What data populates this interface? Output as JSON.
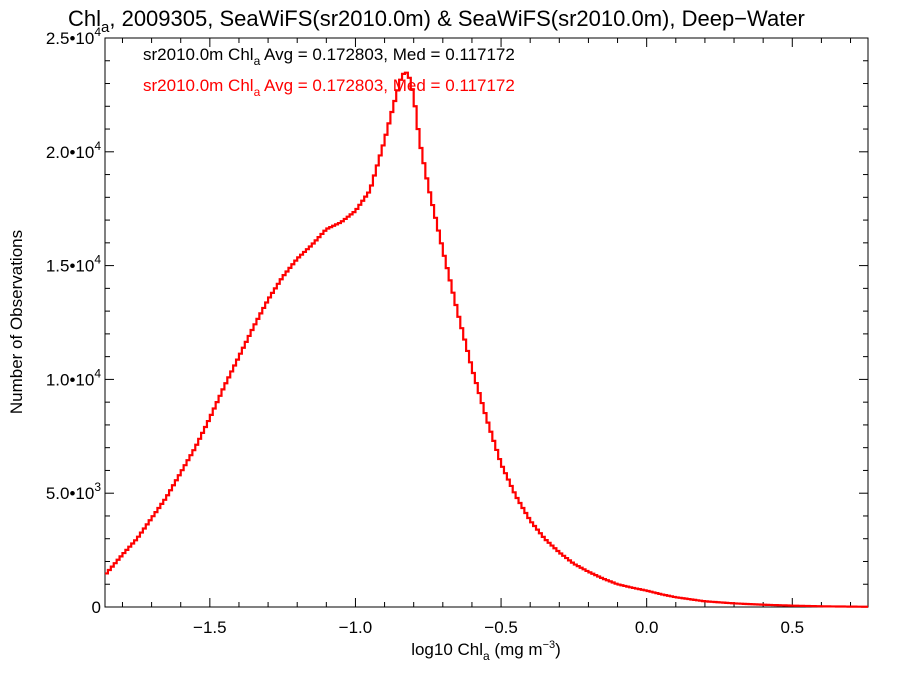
{
  "chart_data": {
    "type": "line",
    "title": {
      "prefix": "Chl",
      "sub": "a",
      "rest": ", 2009305, SeaWiFS(sr2010.0m) & SeaWiFS(sr2010.0m), Deep−Water"
    },
    "xlabel": {
      "prefix": "log10 Chl",
      "sub": "a",
      "rest": " (mg m",
      "sup": "−3",
      "end": ")"
    },
    "ylabel": "Number of Observations",
    "xlim": [
      -1.86,
      0.76
    ],
    "ylim": [
      0,
      25000
    ],
    "x_ticks": [
      -1.5,
      -1.0,
      -0.5,
      0.0,
      0.5
    ],
    "x_tick_labels": [
      "−1.5",
      "−1.0",
      "−0.5",
      "0.0",
      "0.5"
    ],
    "y_ticks": [
      0,
      5000,
      10000,
      15000,
      20000,
      25000
    ],
    "y_tick_labels": [
      {
        "base": "0",
        "exp": ""
      },
      {
        "base": "5.0•10",
        "exp": "3"
      },
      {
        "base": "1.0•10",
        "exp": "4"
      },
      {
        "base": "1.5•10",
        "exp": "4"
      },
      {
        "base": "2.0•10",
        "exp": "4"
      },
      {
        "base": "2.5•10",
        "exp": "4"
      }
    ],
    "grid": false,
    "legend_position": "top-left",
    "stats": [
      {
        "prefix": "sr2010.0m Chl",
        "sub": "a",
        "rest": " Avg = 0.172803, Med = 0.117172",
        "color": "#000000"
      },
      {
        "prefix": "sr2010.0m Chl",
        "sub": "a",
        "rest": " Avg = 0.172803, Med = 0.117172",
        "color": "#ff0000"
      }
    ],
    "series": [
      {
        "color": "#ff0000",
        "x": [
          -1.86,
          -1.8,
          -1.75,
          -1.7,
          -1.65,
          -1.6,
          -1.55,
          -1.5,
          -1.45,
          -1.4,
          -1.35,
          -1.3,
          -1.25,
          -1.2,
          -1.15,
          -1.1,
          -1.05,
          -1.0,
          -0.95,
          -0.9,
          -0.87,
          -0.84,
          -0.82,
          -0.8,
          -0.78,
          -0.75,
          -0.7,
          -0.65,
          -0.6,
          -0.55,
          -0.5,
          -0.45,
          -0.4,
          -0.35,
          -0.3,
          -0.25,
          -0.2,
          -0.15,
          -0.1,
          -0.05,
          0.0,
          0.05,
          0.1,
          0.15,
          0.2,
          0.3,
          0.4,
          0.5,
          0.6,
          0.76
        ],
        "y": [
          1400,
          2300,
          3000,
          3900,
          4800,
          5900,
          7000,
          8300,
          9700,
          11000,
          12300,
          13500,
          14500,
          15300,
          15900,
          16600,
          16900,
          17400,
          18300,
          20500,
          22000,
          23400,
          23500,
          22500,
          20500,
          18500,
          15700,
          13000,
          10500,
          8300,
          6300,
          4900,
          3800,
          3000,
          2400,
          1900,
          1550,
          1250,
          1000,
          850,
          720,
          560,
          430,
          340,
          250,
          160,
          100,
          60,
          30,
          10
        ]
      }
    ]
  }
}
